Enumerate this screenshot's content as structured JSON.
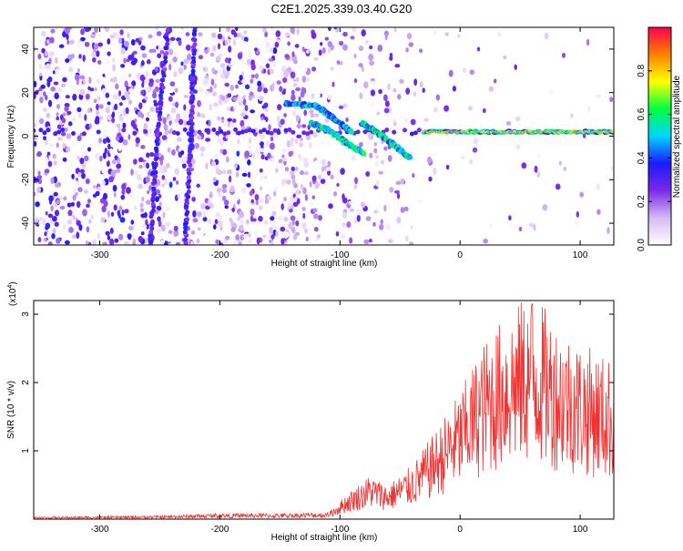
{
  "title": "C2E1.2025.339.03.40.G20",
  "chart_data": [
    {
      "type": "heatmap",
      "xlabel": "Height of straight line (km)",
      "ylabel": "Frequency (Hz)",
      "xlim": [
        -355,
        128
      ],
      "ylim": [
        -50,
        50
      ],
      "xticks": [
        -300,
        -200,
        -100,
        0,
        100
      ],
      "yticks": [
        -40,
        -20,
        0,
        20,
        40
      ],
      "colorbar": {
        "label": "Normalized spectral amplitude",
        "range": [
          0,
          1
        ],
        "ticks": [
          0.0,
          0.2,
          0.4,
          0.6,
          0.8
        ],
        "tick_labels": [
          "0.0",
          "0.2",
          "0.4",
          "0.6",
          "0.8"
        ]
      },
      "colormap": [
        "#ffffff",
        "#d7b8f5",
        "#7a2ae6",
        "#1a1aff",
        "#00d5ff",
        "#00ff40",
        "#ffff00",
        "#ff8000",
        "#ff0050"
      ],
      "features": [
        {
          "name": "main-tone",
          "x": [
            -30,
            128
          ],
          "y": 2,
          "amplitude": 0.85
        },
        {
          "name": "arc-1",
          "points": [
            [
              -145,
              15
            ],
            [
              -120,
              14
            ],
            [
              -105,
              8
            ],
            [
              -90,
              2
            ]
          ],
          "amplitude": 0.45
        },
        {
          "name": "arc-2",
          "points": [
            [
              -125,
              6
            ],
            [
              -110,
              3
            ],
            [
              -95,
              -3
            ],
            [
              -80,
              -8
            ]
          ],
          "amplitude": 0.5
        },
        {
          "name": "arc-3",
          "points": [
            [
              -82,
              6
            ],
            [
              -70,
              2
            ],
            [
              -55,
              -4
            ],
            [
              -42,
              -10
            ]
          ],
          "amplitude": 0.5
        },
        {
          "name": "streak-1",
          "points": [
            [
              -258,
              -50
            ],
            [
              -252,
              0
            ],
            [
              -243,
              50
            ]
          ],
          "amplitude": 0.3
        },
        {
          "name": "streak-2",
          "points": [
            [
              -229,
              -50
            ],
            [
              -224,
              0
            ],
            [
              -221,
              50
            ]
          ],
          "amplitude": 0.3
        }
      ]
    },
    {
      "type": "line",
      "xlabel": "Height of straight line (km)",
      "ylabel": "SNR (10 * v/v)",
      "y_scale_label": "(x10",
      "y_scale_exponent": "4",
      "xlim": [
        -355,
        128
      ],
      "ylim": [
        0,
        3.2
      ],
      "xticks": [
        -300,
        -200,
        -100,
        0,
        100
      ],
      "yticks": [
        1,
        2,
        3
      ],
      "color": "#ee3333",
      "envelope": [
        {
          "x": -355,
          "y": 0.02
        },
        {
          "x": -250,
          "y": 0.03
        },
        {
          "x": -200,
          "y": 0.05
        },
        {
          "x": -150,
          "y": 0.05
        },
        {
          "x": -110,
          "y": 0.06
        },
        {
          "x": -95,
          "y": 0.25
        },
        {
          "x": -75,
          "y": 0.45
        },
        {
          "x": -60,
          "y": 0.35
        },
        {
          "x": -40,
          "y": 0.55
        },
        {
          "x": -20,
          "y": 0.9
        },
        {
          "x": 0,
          "y": 1.3
        },
        {
          "x": 20,
          "y": 1.8
        },
        {
          "x": 40,
          "y": 2.1
        },
        {
          "x": 60,
          "y": 2.3
        },
        {
          "x": 80,
          "y": 2.0
        },
        {
          "x": 100,
          "y": 1.8
        },
        {
          "x": 128,
          "y": 1.6
        }
      ],
      "peak": {
        "x": 60,
        "y": 3.15
      }
    }
  ]
}
